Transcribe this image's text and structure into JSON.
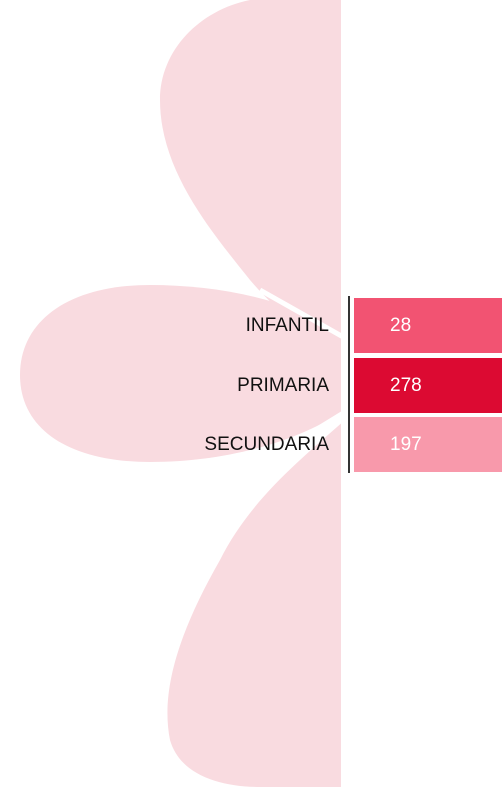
{
  "rows": [
    {
      "label": "INFANTIL",
      "value": 28,
      "color": "#f25372"
    },
    {
      "label": "PRIMARIA",
      "value": 278,
      "color": "#dc0a32"
    },
    {
      "label": "SECUNDARIA",
      "value": 197,
      "color": "#f899ab"
    }
  ]
}
